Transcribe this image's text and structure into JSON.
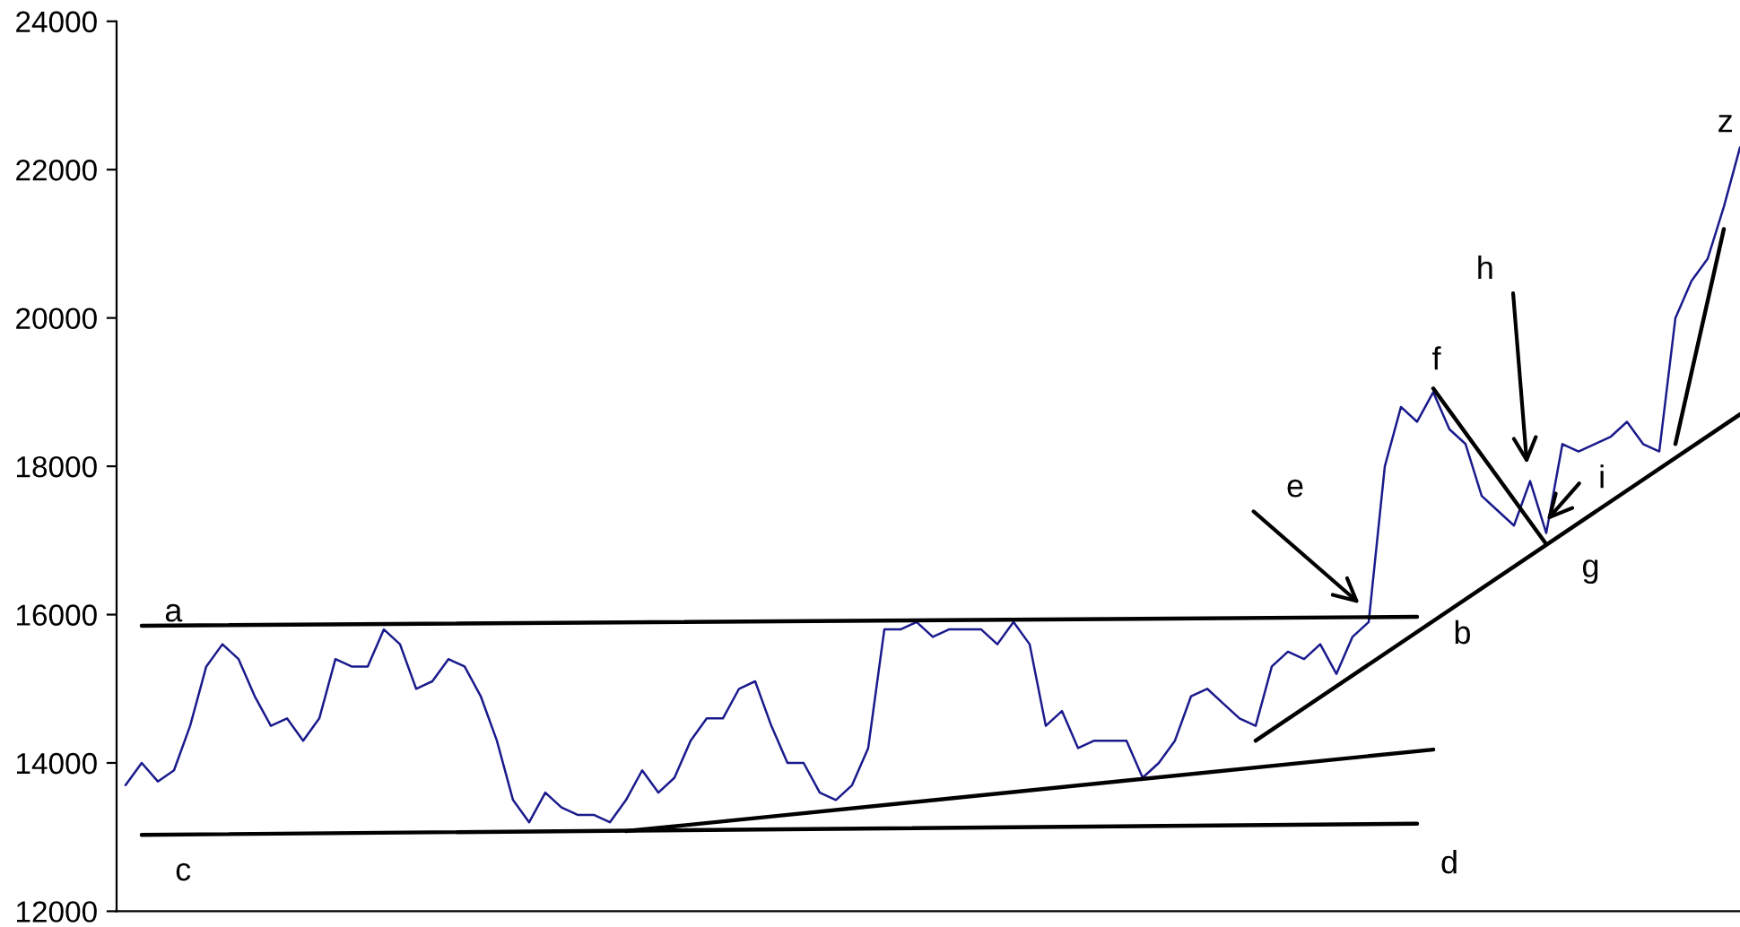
{
  "chart_data": {
    "type": "line",
    "categories": [
      null,
      null,
      null,
      null,
      null,
      null,
      null,
      null,
      null,
      null,
      null,
      null,
      null,
      null,
      null,
      null,
      null,
      null,
      null,
      null,
      null,
      null,
      null,
      null,
      null,
      null,
      null,
      null,
      null,
      null,
      null,
      null,
      null,
      null,
      null,
      null,
      null,
      null,
      null,
      null,
      null,
      null,
      null,
      null,
      null,
      null,
      null,
      null,
      null,
      null,
      null,
      null,
      null,
      null,
      null,
      null,
      null,
      null,
      null,
      null,
      null,
      null,
      null,
      null,
      null,
      null,
      null,
      null,
      null,
      null,
      null,
      null,
      null,
      null,
      null,
      null,
      null,
      null,
      null,
      null,
      null,
      null,
      null,
      null,
      null,
      null,
      null,
      null,
      null,
      null,
      null,
      null,
      null,
      null,
      null,
      null,
      null,
      null,
      null,
      null,
      null
    ],
    "series": [
      {
        "color": "#1a1a8c",
        "values": [
          13700,
          14000,
          13750,
          13900,
          14500,
          15300,
          15600,
          15400,
          14900,
          14500,
          14600,
          14300,
          14600,
          15400,
          15300,
          15300,
          15800,
          15600,
          15000,
          15100,
          15400,
          15300,
          14900,
          14300,
          13500,
          13200,
          13600,
          13400,
          13300,
          13300,
          13200,
          13500,
          13900,
          13600,
          13800,
          14300,
          14600,
          14600,
          15000,
          15100,
          14500,
          14000,
          14000,
          13600,
          13500,
          13700,
          14200,
          15800,
          15800,
          15900,
          15700,
          15800,
          15800,
          15800,
          15600,
          15900,
          15600,
          14500,
          14700,
          14200,
          14300,
          14300,
          14300,
          13800,
          14000,
          14300,
          14900,
          15000,
          14800,
          14600,
          14500,
          15300,
          15500,
          15400,
          15600,
          15200,
          15700,
          15900,
          18000,
          18800,
          18600,
          19000,
          18500,
          18300,
          17600,
          17400,
          17200,
          17800,
          17100,
          18300,
          18200,
          18300,
          18400,
          18600,
          18300,
          18200,
          20000,
          20500,
          20800,
          21500,
          22300
        ]
      },
      {
        "color": "#000000",
        "values": [
          null,
          15850,
          null,
          null,
          null,
          null,
          null,
          null,
          null,
          null,
          null,
          null,
          null,
          null,
          null,
          null,
          null,
          null,
          null,
          null,
          null,
          null,
          null,
          null,
          null,
          null,
          null,
          null,
          null,
          null,
          null,
          null,
          null,
          null,
          null,
          null,
          null,
          null,
          null,
          null,
          null,
          null,
          null,
          null,
          null,
          null,
          null,
          null,
          null,
          null,
          null,
          null,
          null,
          null,
          null,
          null,
          null,
          null,
          null,
          null,
          null,
          null,
          null,
          null,
          null,
          null,
          null,
          null,
          null,
          null,
          null,
          null,
          null,
          null,
          null,
          null,
          null,
          null,
          null,
          null,
          15970,
          null,
          null,
          null,
          null,
          null,
          null,
          null,
          null,
          null,
          null,
          null,
          null,
          null,
          null,
          null,
          null,
          null,
          null,
          null,
          null
        ]
      },
      {
        "color": "#000000",
        "values": [
          null,
          13030,
          null,
          null,
          null,
          null,
          null,
          null,
          null,
          null,
          null,
          null,
          null,
          null,
          null,
          null,
          null,
          null,
          null,
          null,
          null,
          null,
          null,
          null,
          null,
          null,
          null,
          null,
          null,
          null,
          null,
          null,
          null,
          null,
          null,
          null,
          null,
          null,
          null,
          null,
          null,
          null,
          null,
          null,
          null,
          null,
          null,
          null,
          null,
          null,
          null,
          null,
          null,
          null,
          null,
          null,
          null,
          null,
          null,
          null,
          null,
          null,
          null,
          null,
          null,
          null,
          null,
          null,
          null,
          null,
          null,
          null,
          null,
          null,
          null,
          null,
          null,
          null,
          null,
          null,
          13180,
          null,
          null,
          null,
          null,
          null,
          null,
          null,
          null,
          null,
          null,
          null,
          null,
          null,
          null,
          null,
          null,
          null,
          null,
          null,
          null
        ]
      },
      {
        "color": "#000000",
        "values": [
          null,
          null,
          null,
          null,
          null,
          null,
          null,
          null,
          null,
          null,
          null,
          null,
          null,
          null,
          null,
          null,
          null,
          null,
          null,
          null,
          null,
          null,
          null,
          null,
          null,
          null,
          null,
          null,
          null,
          null,
          null,
          13080,
          null,
          null,
          null,
          null,
          null,
          null,
          null,
          null,
          null,
          null,
          null,
          null,
          null,
          null,
          null,
          null,
          null,
          null,
          null,
          null,
          null,
          null,
          null,
          null,
          null,
          null,
          null,
          null,
          null,
          null,
          null,
          null,
          null,
          null,
          null,
          null,
          null,
          null,
          null,
          null,
          null,
          null,
          null,
          null,
          null,
          null,
          null,
          null,
          null,
          14180,
          null,
          null,
          null,
          null,
          null,
          null,
          null,
          null,
          null,
          null,
          null,
          null,
          null,
          null,
          null,
          null,
          null,
          null,
          null
        ]
      },
      {
        "color": "#000000",
        "values": [
          null,
          null,
          null,
          null,
          null,
          null,
          null,
          null,
          null,
          null,
          null,
          null,
          null,
          null,
          null,
          null,
          null,
          null,
          null,
          null,
          null,
          null,
          null,
          null,
          null,
          null,
          null,
          null,
          null,
          null,
          null,
          null,
          null,
          null,
          null,
          null,
          null,
          null,
          null,
          null,
          null,
          null,
          null,
          null,
          null,
          null,
          null,
          null,
          null,
          null,
          null,
          null,
          null,
          null,
          null,
          null,
          null,
          null,
          null,
          null,
          null,
          null,
          null,
          null,
          null,
          null,
          null,
          null,
          null,
          null,
          14300,
          null,
          null,
          null,
          null,
          null,
          null,
          null,
          null,
          null,
          null,
          null,
          null,
          null,
          null,
          null,
          null,
          null,
          null,
          null,
          null,
          null,
          null,
          null,
          null,
          null,
          null,
          null,
          null,
          null,
          18700
        ]
      },
      {
        "color": "#000000",
        "values": [
          null,
          null,
          null,
          null,
          null,
          null,
          null,
          null,
          null,
          null,
          null,
          null,
          null,
          null,
          null,
          null,
          null,
          null,
          null,
          null,
          null,
          null,
          null,
          null,
          null,
          null,
          null,
          null,
          null,
          null,
          null,
          null,
          null,
          null,
          null,
          null,
          null,
          null,
          null,
          null,
          null,
          null,
          null,
          null,
          null,
          null,
          null,
          null,
          null,
          null,
          null,
          null,
          null,
          null,
          null,
          null,
          null,
          null,
          null,
          null,
          null,
          null,
          null,
          null,
          null,
          null,
          null,
          null,
          null,
          null,
          null,
          null,
          null,
          null,
          null,
          null,
          null,
          null,
          null,
          null,
          null,
          19050,
          null,
          null,
          null,
          null,
          null,
          null,
          16950,
          null,
          null,
          null,
          null,
          null,
          null,
          null,
          null,
          null,
          null,
          null,
          null
        ]
      },
      {
        "color": "#000000",
        "values": [
          null,
          null,
          null,
          null,
          null,
          null,
          null,
          null,
          null,
          null,
          null,
          null,
          null,
          null,
          null,
          null,
          null,
          null,
          null,
          null,
          null,
          null,
          null,
          null,
          null,
          null,
          null,
          null,
          null,
          null,
          null,
          null,
          null,
          null,
          null,
          null,
          null,
          null,
          null,
          null,
          null,
          null,
          null,
          null,
          null,
          null,
          null,
          null,
          null,
          null,
          null,
          null,
          null,
          null,
          null,
          null,
          null,
          null,
          null,
          null,
          null,
          null,
          null,
          null,
          null,
          null,
          null,
          null,
          null,
          null,
          null,
          null,
          null,
          null,
          null,
          null,
          null,
          null,
          null,
          null,
          null,
          null,
          null,
          null,
          null,
          null,
          null,
          null,
          null,
          null,
          null,
          null,
          null,
          null,
          null,
          null,
          18300,
          null,
          null,
          21200,
          null
        ]
      }
    ],
    "ylim": [
      12000,
      24000
    ],
    "yticks": [
      12000,
      14000,
      16000,
      18000,
      20000,
      22000,
      24000
    ],
    "tick_labels": "y",
    "annotations": [
      "a",
      "b",
      "c",
      "d",
      "e",
      "f",
      "g",
      "h",
      "i",
      "z"
    ]
  }
}
